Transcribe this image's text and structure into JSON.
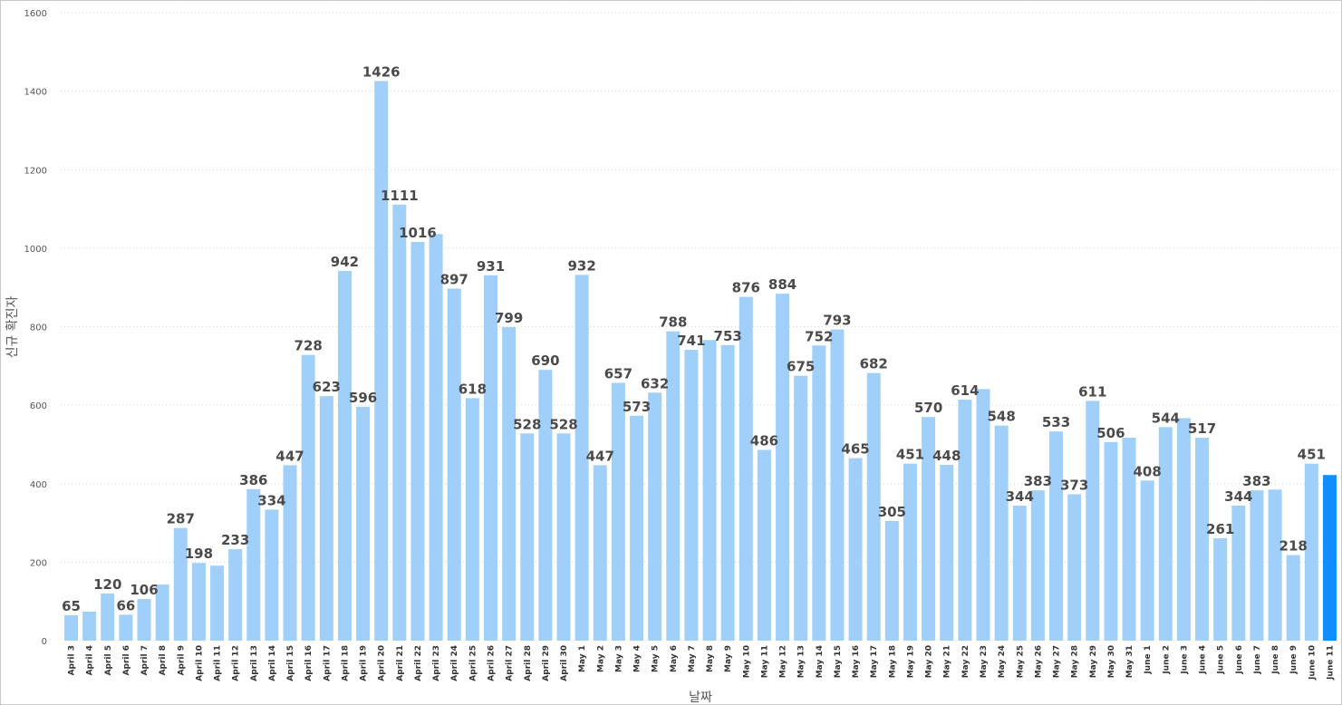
{
  "chart_data": {
    "type": "bar",
    "title": "",
    "xlabel": "날짜",
    "ylabel": "신규 확진자",
    "ylim": [
      0,
      1600
    ],
    "yticks": [
      0,
      200,
      400,
      600,
      800,
      1000,
      1200,
      1400,
      1600
    ],
    "grid": true,
    "colors": {
      "bar": "#a0d0fa",
      "highlight": "#118dff"
    },
    "highlight_index": 69,
    "categories": [
      "April 3",
      "April 4",
      "April 5",
      "April 6",
      "April 7",
      "April 8",
      "April 9",
      "April 10",
      "April 11",
      "April 12",
      "April 13",
      "April 14",
      "April 15",
      "April 16",
      "April 17",
      "April 18",
      "April 19",
      "April 20",
      "April 21",
      "April 22",
      "April 23",
      "April 24",
      "April 25",
      "April 26",
      "April 27",
      "April 28",
      "April 29",
      "April 30",
      "May 1",
      "May 2",
      "May 3",
      "May 4",
      "May 5",
      "May 6",
      "May 7",
      "May 8",
      "May 9",
      "May 10",
      "May 11",
      "May 12",
      "May 13",
      "May 14",
      "May 15",
      "May 16",
      "May 17",
      "May 18",
      "May 19",
      "May 20",
      "May 21",
      "May 22",
      "May 23",
      "May 24",
      "May 25",
      "May 26",
      "May 27",
      "May 28",
      "May 29",
      "May 30",
      "May 31",
      "June 1",
      "June 2",
      "June 3",
      "June 4",
      "June 5",
      "June 6",
      "June 7",
      "June 8",
      "June 9",
      "June 10",
      "June 11"
    ],
    "values": [
      65,
      74,
      120,
      66,
      106,
      143,
      287,
      198,
      191,
      233,
      386,
      334,
      447,
      728,
      623,
      942,
      596,
      1426,
      1111,
      1016,
      1036,
      897,
      618,
      931,
      799,
      528,
      690,
      528,
      932,
      447,
      657,
      573,
      632,
      788,
      741,
      766,
      753,
      876,
      486,
      884,
      675,
      752,
      793,
      465,
      682,
      305,
      451,
      570,
      448,
      614,
      641,
      548,
      344,
      383,
      533,
      373,
      611,
      506,
      517,
      408,
      544,
      567,
      517,
      261,
      344,
      383,
      385,
      218,
      451,
      422
    ],
    "data_labels": [
      "65",
      "",
      "120",
      "66",
      "106",
      "",
      "287",
      "198",
      "",
      "233",
      "386",
      "334",
      "447",
      "728",
      "623",
      "942",
      "596",
      "1426",
      "1111",
      "1016",
      "",
      "897",
      "618",
      "931",
      "799",
      "528",
      "690",
      "528",
      "932",
      "447",
      "657",
      "573",
      "632",
      "788",
      "741",
      "",
      "753",
      "876",
      "486",
      "884",
      "675",
      "752",
      "793",
      "465",
      "682",
      "305",
      "451",
      "570",
      "448",
      "614",
      "",
      "548",
      "344",
      "383",
      "533",
      "373",
      "611",
      "506",
      "",
      "408",
      "544",
      "",
      "517",
      "261",
      "344",
      "383",
      "",
      "218",
      "451",
      ""
    ]
  }
}
